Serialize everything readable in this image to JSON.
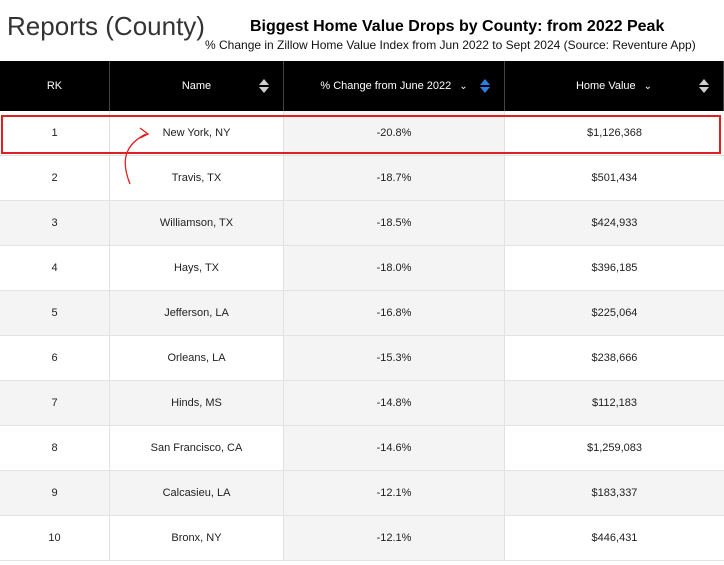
{
  "page_title": "Reports (County)",
  "report": {
    "title": "Biggest Home Value Drops by County: from 2022 Peak",
    "subtitle": "% Change in Zillow Home Value Index from Jun 2022 to Sept  2024 (Source: Reventure App)"
  },
  "table": {
    "headers": {
      "rank": "RK",
      "name": "Name",
      "change": "% Change from June 2022",
      "home_value": "Home Value"
    },
    "rows": [
      {
        "rank": "1",
        "name": "New York, NY",
        "change": "-20.8%",
        "home_value": "$1,126,368"
      },
      {
        "rank": "2",
        "name": "Travis, TX",
        "change": "-18.7%",
        "home_value": "$501,434"
      },
      {
        "rank": "3",
        "name": "Williamson, TX",
        "change": "-18.5%",
        "home_value": "$424,933"
      },
      {
        "rank": "4",
        "name": "Hays, TX",
        "change": "-18.0%",
        "home_value": "$396,185"
      },
      {
        "rank": "5",
        "name": "Jefferson, LA",
        "change": "-16.8%",
        "home_value": "$225,064"
      },
      {
        "rank": "6",
        "name": "Orleans, LA",
        "change": "-15.3%",
        "home_value": "$238,666"
      },
      {
        "rank": "7",
        "name": "Hinds, MS",
        "change": "-14.8%",
        "home_value": "$112,183"
      },
      {
        "rank": "8",
        "name": "San Francisco, CA",
        "change": "-14.6%",
        "home_value": "$1,259,083"
      },
      {
        "rank": "9",
        "name": "Calcasieu, LA",
        "change": "-12.1%",
        "home_value": "$183,337"
      },
      {
        "rank": "10",
        "name": "Bronx, NY",
        "change": "-12.1%",
        "home_value": "$446,431"
      }
    ]
  },
  "colors": {
    "header_bg": "#000000",
    "active_sort": "#2e7de1",
    "highlight": "#e02020"
  }
}
